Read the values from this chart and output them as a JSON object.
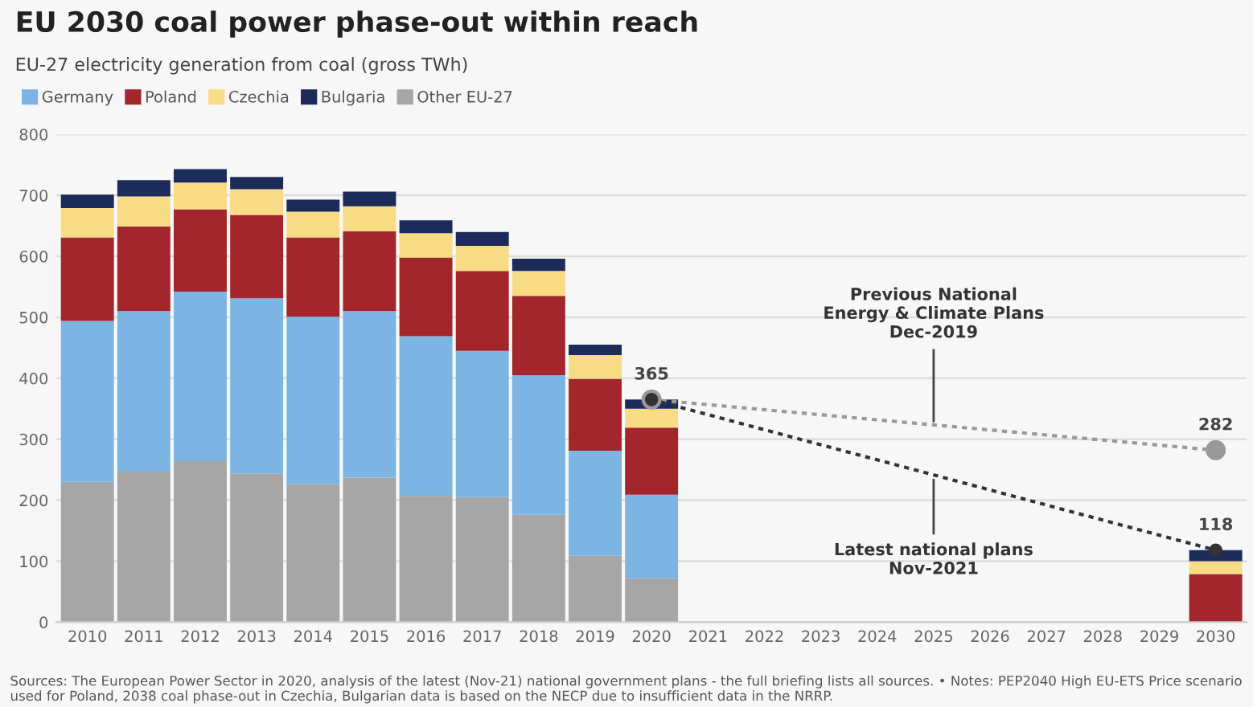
{
  "chart_data": {
    "type": "bar",
    "stacked": true,
    "title": "EU 2030 coal power phase-out within reach",
    "subtitle": "EU-27 electricity generation from coal (gross TWh)",
    "categories": [
      "2010",
      "2011",
      "2012",
      "2013",
      "2014",
      "2015",
      "2016",
      "2017",
      "2018",
      "2019",
      "2020",
      "2021",
      "2022",
      "2023",
      "2024",
      "2025",
      "2026",
      "2027",
      "2028",
      "2029",
      "2030"
    ],
    "series": [
      {
        "name": "Other EU-27",
        "color": "#a6a6a6",
        "values": [
          230,
          247,
          264,
          244,
          226,
          237,
          207,
          205,
          176,
          109,
          72,
          null,
          null,
          null,
          null,
          null,
          null,
          null,
          null,
          null,
          null
        ]
      },
      {
        "name": "Germany",
        "color": "#7cb5e3",
        "values": [
          264,
          263,
          278,
          287,
          275,
          273,
          262,
          240,
          229,
          172,
          137,
          null,
          null,
          null,
          null,
          null,
          null,
          null,
          null,
          null,
          null
        ]
      },
      {
        "name": "Poland",
        "color": "#a3262d",
        "values": [
          137,
          139,
          135,
          137,
          130,
          131,
          129,
          131,
          130,
          118,
          110,
          null,
          null,
          null,
          null,
          null,
          null,
          null,
          null,
          null,
          79
        ]
      },
      {
        "name": "Czechia",
        "color": "#f8dc85",
        "values": [
          48,
          49,
          44,
          42,
          42,
          41,
          40,
          41,
          41,
          39,
          31,
          null,
          null,
          null,
          null,
          null,
          null,
          null,
          null,
          null,
          21
        ]
      },
      {
        "name": "Bulgaria",
        "color": "#1c2b5a",
        "values": [
          22,
          27,
          22,
          20,
          20,
          24,
          21,
          23,
          20,
          17,
          15,
          null,
          null,
          null,
          null,
          null,
          null,
          null,
          null,
          null,
          18
        ]
      },
      {
        "type": "line",
        "color": "#999999",
        "line_style": "dotted",
        "marker": "circle",
        "values": [
          null,
          null,
          null,
          null,
          null,
          null,
          null,
          null,
          null,
          null,
          365,
          null,
          null,
          null,
          null,
          null,
          null,
          null,
          null,
          null,
          282
        ],
        "value_labels": [
          null,
          null,
          null,
          null,
          null,
          null,
          null,
          null,
          null,
          null,
          null,
          null,
          null,
          null,
          null,
          null,
          null,
          null,
          null,
          null,
          "282"
        ]
      },
      {
        "type": "line",
        "color": "#333333",
        "line_style": "dotted",
        "marker": "circle",
        "values": [
          null,
          null,
          null,
          null,
          null,
          null,
          null,
          null,
          null,
          null,
          365,
          null,
          null,
          null,
          null,
          null,
          null,
          null,
          null,
          null,
          118
        ],
        "value_labels": [
          null,
          null,
          null,
          null,
          null,
          null,
          null,
          null,
          null,
          null,
          "365",
          null,
          null,
          null,
          null,
          null,
          null,
          null,
          null,
          null,
          "118"
        ]
      }
    ],
    "ylim": [
      0,
      800
    ],
    "yticks": [
      0,
      100,
      200,
      300,
      400,
      500,
      600,
      700,
      800
    ],
    "grid": "y",
    "legend": "top left",
    "annotations": [
      {
        "text": "Previous National\nEnergy & Climate Plans\nDec-2019",
        "x": "2025",
        "y": 322
      },
      {
        "text": "Latest national plans\nNov-2021",
        "x": "2025",
        "y": 241
      },
      "Sources: The European Power Sector in 2020, analysis of the latest (Nov-21) national government plans - the full briefing lists all sources. • Notes: PEP2040 High EU-ETS Price scenario used for Poland, 2038 coal phase-out in Czechia, Bulgarian data is based on the NECP due to insufficient data in the NRRP."
    ]
  }
}
